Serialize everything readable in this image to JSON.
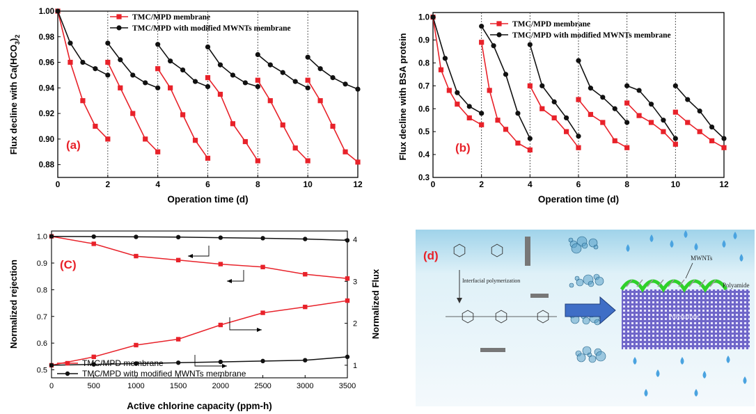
{
  "chart_data": [
    {
      "panel": "a",
      "type": "line",
      "panel_label": "(a)",
      "xlabel": "Operation time (d)",
      "ylabel_main": "Flux decline with Ca(HCO",
      "ylabel_sub": "3",
      "ylabel_end": ")",
      "ylabel_sub2": "2",
      "xlim": [
        0,
        12
      ],
      "ylim": [
        0.87,
        1.0
      ],
      "xticks": [
        0,
        2,
        4,
        6,
        8,
        10,
        12
      ],
      "yticks": [
        0.88,
        0.9,
        0.92,
        0.94,
        0.96,
        0.98,
        1.0
      ],
      "ytick_labels": [
        "0.88",
        "0.90",
        "0.92",
        "0.94",
        "0.96",
        "0.98",
        "1.00"
      ],
      "dividers": [
        2,
        4,
        6,
        8,
        10
      ],
      "legend_position": "top",
      "series": [
        {
          "name": "TMC/MPD membrane",
          "color": "#e8222a",
          "marker": "square",
          "segments": [
            [
              [
                0,
                1.0
              ],
              [
                0.5,
                0.96
              ],
              [
                1,
                0.93
              ],
              [
                1.5,
                0.91
              ],
              [
                2,
                0.9
              ]
            ],
            [
              [
                2,
                0.96
              ],
              [
                2.5,
                0.94
              ],
              [
                3,
                0.92
              ],
              [
                3.5,
                0.9
              ],
              [
                4,
                0.89
              ]
            ],
            [
              [
                4,
                0.955
              ],
              [
                4.5,
                0.94
              ],
              [
                5,
                0.919
              ],
              [
                5.5,
                0.899
              ],
              [
                6,
                0.885
              ]
            ],
            [
              [
                6,
                0.948
              ],
              [
                6.5,
                0.935
              ],
              [
                7,
                0.912
              ],
              [
                7.5,
                0.898
              ],
              [
                8,
                0.883
              ]
            ],
            [
              [
                8,
                0.946
              ],
              [
                8.5,
                0.93
              ],
              [
                9,
                0.911
              ],
              [
                9.5,
                0.893
              ],
              [
                10,
                0.883
              ]
            ],
            [
              [
                10,
                0.946
              ],
              [
                10.5,
                0.93
              ],
              [
                11,
                0.91
              ],
              [
                11.5,
                0.89
              ],
              [
                12,
                0.882
              ]
            ]
          ]
        },
        {
          "name": "TMC/MPD with modified MWNTs membrane",
          "color": "#111111",
          "marker": "circle",
          "segments": [
            [
              [
                0,
                1.0
              ],
              [
                0.5,
                0.975
              ],
              [
                1,
                0.96
              ],
              [
                1.5,
                0.955
              ],
              [
                2,
                0.95
              ]
            ],
            [
              [
                2,
                0.975
              ],
              [
                2.5,
                0.962
              ],
              [
                3,
                0.95
              ],
              [
                3.5,
                0.944
              ],
              [
                4,
                0.94
              ]
            ],
            [
              [
                4,
                0.974
              ],
              [
                4.5,
                0.961
              ],
              [
                5,
                0.954
              ],
              [
                5.5,
                0.945
              ],
              [
                6,
                0.941
              ]
            ],
            [
              [
                6,
                0.972
              ],
              [
                6.5,
                0.958
              ],
              [
                7,
                0.95
              ],
              [
                7.5,
                0.944
              ],
              [
                8,
                0.941
              ]
            ],
            [
              [
                8,
                0.966
              ],
              [
                8.5,
                0.958
              ],
              [
                9,
                0.952
              ],
              [
                9.5,
                0.945
              ],
              [
                10,
                0.94
              ]
            ],
            [
              [
                10,
                0.964
              ],
              [
                10.5,
                0.955
              ],
              [
                11,
                0.948
              ],
              [
                11.5,
                0.943
              ],
              [
                12,
                0.939
              ]
            ]
          ]
        }
      ]
    },
    {
      "panel": "b",
      "type": "line",
      "panel_label": "(b)",
      "xlabel": "Operation time (d)",
      "ylabel": "Flux decline with BSA  protein",
      "xlim": [
        0,
        12
      ],
      "ylim": [
        0.3,
        1.02
      ],
      "xticks": [
        0,
        2,
        4,
        6,
        8,
        10,
        12
      ],
      "yticks": [
        0.3,
        0.4,
        0.5,
        0.6,
        0.7,
        0.8,
        0.9,
        1.0
      ],
      "ytick_labels": [
        "0.3",
        "0.4",
        "0.5",
        "0.6",
        "0.7",
        "0.8",
        "0.9",
        "1.0"
      ],
      "dividers": [
        2,
        4,
        6,
        8,
        10
      ],
      "legend_position": "top",
      "series": [
        {
          "name": "TMC/MPD membrane",
          "color": "#e8222a",
          "marker": "square",
          "segments": [
            [
              [
                0,
                1.0
              ],
              [
                0.33,
                0.77
              ],
              [
                0.67,
                0.68
              ],
              [
                1,
                0.62
              ],
              [
                1.5,
                0.56
              ],
              [
                2,
                0.53
              ]
            ],
            [
              [
                2,
                0.89
              ],
              [
                2.33,
                0.68
              ],
              [
                2.67,
                0.55
              ],
              [
                3,
                0.51
              ],
              [
                3.5,
                0.45
              ],
              [
                4,
                0.42
              ]
            ],
            [
              [
                4,
                0.7
              ],
              [
                4.5,
                0.6
              ],
              [
                5,
                0.56
              ],
              [
                5.5,
                0.5
              ],
              [
                6,
                0.43
              ]
            ],
            [
              [
                6,
                0.64
              ],
              [
                6.5,
                0.575
              ],
              [
                7,
                0.54
              ],
              [
                7.5,
                0.46
              ],
              [
                8,
                0.43
              ]
            ],
            [
              [
                8,
                0.625
              ],
              [
                8.5,
                0.57
              ],
              [
                9,
                0.54
              ],
              [
                9.5,
                0.5
              ],
              [
                10,
                0.445
              ]
            ],
            [
              [
                10,
                0.585
              ],
              [
                10.5,
                0.54
              ],
              [
                11,
                0.5
              ],
              [
                11.5,
                0.46
              ],
              [
                12,
                0.43
              ]
            ]
          ]
        },
        {
          "name": "TMC/MPD with modified MWNTs membrane",
          "color": "#111111",
          "marker": "circle",
          "segments": [
            [
              [
                0,
                1.0
              ],
              [
                0.5,
                0.82
              ],
              [
                1,
                0.67
              ],
              [
                1.5,
                0.61
              ],
              [
                2,
                0.58
              ]
            ],
            [
              [
                2,
                0.96
              ],
              [
                2.5,
                0.875
              ],
              [
                3,
                0.75
              ],
              [
                3.5,
                0.58
              ],
              [
                4,
                0.47
              ]
            ],
            [
              [
                4,
                0.88
              ],
              [
                4.5,
                0.7
              ],
              [
                5,
                0.63
              ],
              [
                5.5,
                0.56
              ],
              [
                6,
                0.48
              ]
            ],
            [
              [
                6,
                0.81
              ],
              [
                6.5,
                0.69
              ],
              [
                7,
                0.65
              ],
              [
                7.5,
                0.6
              ],
              [
                8,
                0.54
              ]
            ],
            [
              [
                8,
                0.7
              ],
              [
                8.5,
                0.68
              ],
              [
                9,
                0.62
              ],
              [
                9.5,
                0.55
              ],
              [
                10,
                0.47
              ]
            ],
            [
              [
                10,
                0.7
              ],
              [
                10.5,
                0.64
              ],
              [
                11,
                0.59
              ],
              [
                11.5,
                0.52
              ],
              [
                12,
                0.47
              ]
            ]
          ]
        }
      ]
    },
    {
      "panel": "c",
      "type": "line",
      "panel_label": "(C)",
      "xlabel": "Active chlorine capacity (ppm-h)",
      "ylabel_left": "Normalized rejection",
      "ylabel_right": "Normalized Flux",
      "xlim": [
        0,
        3500
      ],
      "ylim_left": [
        0.47,
        1.02
      ],
      "ylim_right": [
        0.7,
        4.2
      ],
      "xticks": [
        0,
        500,
        1000,
        1500,
        2000,
        2500,
        3000,
        3500
      ],
      "yticks_left": [
        0.5,
        0.6,
        0.7,
        0.8,
        0.9,
        1.0
      ],
      "ytick_labels_left": [
        "0.5",
        "0.6",
        "0.7",
        "0.8",
        "0.9",
        "1.0"
      ],
      "yticks_right": [
        1,
        2,
        3,
        4
      ],
      "legend_position": "bottom-left",
      "series": [
        {
          "name": "TMC/MPD membrane",
          "color": "#e8222a",
          "marker": "square",
          "axis": "left",
          "x": [
            0,
            500,
            1000,
            1500,
            2000,
            2500,
            3000,
            3500
          ],
          "values": [
            1.0,
            0.972,
            0.926,
            0.911,
            0.896,
            0.885,
            0.858,
            0.842
          ]
        },
        {
          "name": "TMC/MPD with modified MWNTs membrane",
          "color": "#111111",
          "marker": "circle",
          "axis": "left",
          "x": [
            0,
            500,
            1000,
            1500,
            2000,
            2500,
            3000,
            3500
          ],
          "values": [
            1.0,
            0.999,
            0.998,
            0.997,
            0.995,
            0.993,
            0.99,
            0.985
          ]
        },
        {
          "name": "TMC/MPD membrane",
          "color": "#e8222a",
          "marker": "square",
          "axis": "right",
          "x": [
            0,
            500,
            1000,
            1500,
            2000,
            2500,
            3000,
            3500
          ],
          "values": [
            1.0,
            1.2,
            1.48,
            1.62,
            1.96,
            2.25,
            2.39,
            2.54
          ]
        },
        {
          "name": "TMC/MPD with modified MWNTs membrane",
          "color": "#111111",
          "marker": "circle",
          "axis": "right",
          "x": [
            0,
            500,
            1000,
            1500,
            2000,
            2500,
            3000,
            3500
          ],
          "values": [
            1.0,
            1.02,
            1.04,
            1.06,
            1.08,
            1.1,
            1.12,
            1.2
          ]
        }
      ]
    }
  ],
  "panel_d": {
    "label": "(d)",
    "interfacial_label": "Interfacial polymerization",
    "mwnts_label": "MWNTs",
    "polyamide_label": "Polyamide",
    "polysulfone_label": "Polysulfone",
    "colors": {
      "water_top": "#dff1f8",
      "water_bottom": "#f4f9fc",
      "arrow": "#3f6ec6",
      "polyamide": "#2fd12a",
      "polysulfone": "#6f66c9",
      "drop": "#4aa3e0"
    }
  }
}
